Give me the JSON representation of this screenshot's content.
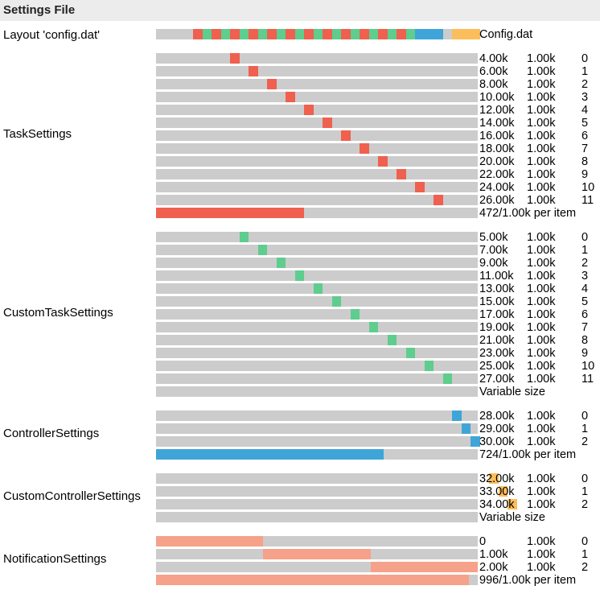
{
  "title": "Settings File",
  "colors": {
    "track": "#cccccc",
    "task": "#ef604e",
    "custom_task": "#5ecd8d",
    "controller": "#3fa5d8",
    "custom_controller": "#fbbe5c",
    "notification": "#f6a18a"
  },
  "total_size": 32768,
  "layout": {
    "label": "Layout 'config.dat'",
    "file": "Config.dat",
    "pattern": [
      "task",
      "custom_task",
      "task",
      "custom_task",
      "task",
      "custom_task",
      "task",
      "custom_task",
      "task",
      "custom_task",
      "task",
      "custom_task",
      "task",
      "custom_task",
      "task",
      "custom_task",
      "task",
      "custom_task",
      "task",
      "custom_task",
      "task",
      "custom_task",
      "task",
      "custom_task",
      "controller",
      "controller",
      "controller",
      "empty",
      "custom_controller",
      "custom_controller",
      "custom_controller"
    ]
  },
  "sections": [
    {
      "id": "tasksettings",
      "label": "TaskSettings",
      "color_key": "task",
      "rows": [
        {
          "offset": "4.00k",
          "size": "1.00k",
          "index": "0",
          "start": 4096,
          "length": 1024
        },
        {
          "offset": "6.00k",
          "size": "1.00k",
          "index": "1",
          "start": 6144,
          "length": 1024
        },
        {
          "offset": "8.00k",
          "size": "1.00k",
          "index": "2",
          "start": 8192,
          "length": 1024
        },
        {
          "offset": "10.00k",
          "size": "1.00k",
          "index": "3",
          "start": 10240,
          "length": 1024
        },
        {
          "offset": "12.00k",
          "size": "1.00k",
          "index": "4",
          "start": 12288,
          "length": 1024
        },
        {
          "offset": "14.00k",
          "size": "1.00k",
          "index": "5",
          "start": 14336,
          "length": 1024
        },
        {
          "offset": "16.00k",
          "size": "1.00k",
          "index": "6",
          "start": 16384,
          "length": 1024
        },
        {
          "offset": "18.00k",
          "size": "1.00k",
          "index": "7",
          "start": 18432,
          "length": 1024
        },
        {
          "offset": "20.00k",
          "size": "1.00k",
          "index": "8",
          "start": 20480,
          "length": 1024
        },
        {
          "offset": "22.00k",
          "size": "1.00k",
          "index": "9",
          "start": 22528,
          "length": 1024
        },
        {
          "offset": "24.00k",
          "size": "1.00k",
          "index": "10",
          "start": 24576,
          "length": 1024
        },
        {
          "offset": "26.00k",
          "size": "1.00k",
          "index": "11",
          "start": 26624,
          "length": 1024
        }
      ],
      "summary": {
        "text": "472/1.00k per item",
        "fraction": 0.461
      }
    },
    {
      "id": "customtasksettings",
      "label": "CustomTaskSettings",
      "color_key": "custom_task",
      "rows": [
        {
          "offset": "5.00k",
          "size": "1.00k",
          "index": "0",
          "start": 5120,
          "length": 1024
        },
        {
          "offset": "7.00k",
          "size": "1.00k",
          "index": "1",
          "start": 7168,
          "length": 1024
        },
        {
          "offset": "9.00k",
          "size": "1.00k",
          "index": "2",
          "start": 9216,
          "length": 1024
        },
        {
          "offset": "11.00k",
          "size": "1.00k",
          "index": "3",
          "start": 11264,
          "length": 1024
        },
        {
          "offset": "13.00k",
          "size": "1.00k",
          "index": "4",
          "start": 13312,
          "length": 1024
        },
        {
          "offset": "15.00k",
          "size": "1.00k",
          "index": "5",
          "start": 15360,
          "length": 1024
        },
        {
          "offset": "17.00k",
          "size": "1.00k",
          "index": "6",
          "start": 17408,
          "length": 1024
        },
        {
          "offset": "19.00k",
          "size": "1.00k",
          "index": "7",
          "start": 19456,
          "length": 1024
        },
        {
          "offset": "21.00k",
          "size": "1.00k",
          "index": "8",
          "start": 21504,
          "length": 1024
        },
        {
          "offset": "23.00k",
          "size": "1.00k",
          "index": "9",
          "start": 23552,
          "length": 1024
        },
        {
          "offset": "25.00k",
          "size": "1.00k",
          "index": "10",
          "start": 25600,
          "length": 1024
        },
        {
          "offset": "27.00k",
          "size": "1.00k",
          "index": "11",
          "start": 27648,
          "length": 1024
        }
      ],
      "summary": {
        "text": "Variable size",
        "fraction": 0
      }
    },
    {
      "id": "controllersettings",
      "label": "ControllerSettings",
      "color_key": "controller",
      "rows": [
        {
          "offset": "28.00k",
          "size": "1.00k",
          "index": "0",
          "start": 28672,
          "length": 1024
        },
        {
          "offset": "29.00k",
          "size": "1.00k",
          "index": "1",
          "start": 29696,
          "length": 1024
        },
        {
          "offset": "30.00k",
          "size": "1.00k",
          "index": "2",
          "start": 30720,
          "length": 1024
        }
      ],
      "summary": {
        "text": "724/1.00k per item",
        "fraction": 0.707
      }
    },
    {
      "id": "customcontrollersettings",
      "label": "CustomControllerSettings",
      "color_key": "custom_controller",
      "rows": [
        {
          "offset": "32.00k",
          "size": "1.00k",
          "index": "0",
          "start": 32768,
          "length": 1024
        },
        {
          "offset": "33.00k",
          "size": "1.00k",
          "index": "1",
          "start": 33792,
          "length": 1024
        },
        {
          "offset": "34.00k",
          "size": "1.00k",
          "index": "2",
          "start": 34816,
          "length": 1024
        }
      ],
      "summary": {
        "text": "Variable size",
        "fraction": 0
      }
    },
    {
      "id": "notificationsettings",
      "label": "NotificationSettings",
      "color_key": "notification",
      "rows": [
        {
          "offset": "0",
          "size": "1.00k",
          "index": "0",
          "start": 0,
          "length": 1024
        },
        {
          "offset": "1.00k",
          "size": "1.00k",
          "index": "1",
          "start": 1024,
          "length": 1024
        },
        {
          "offset": "2.00k",
          "size": "1.00k",
          "index": "2",
          "start": 2048,
          "length": 1024
        }
      ],
      "scale_total": 3072,
      "summary": {
        "text": "996/1.00k per item",
        "fraction": 0.973
      }
    }
  ]
}
